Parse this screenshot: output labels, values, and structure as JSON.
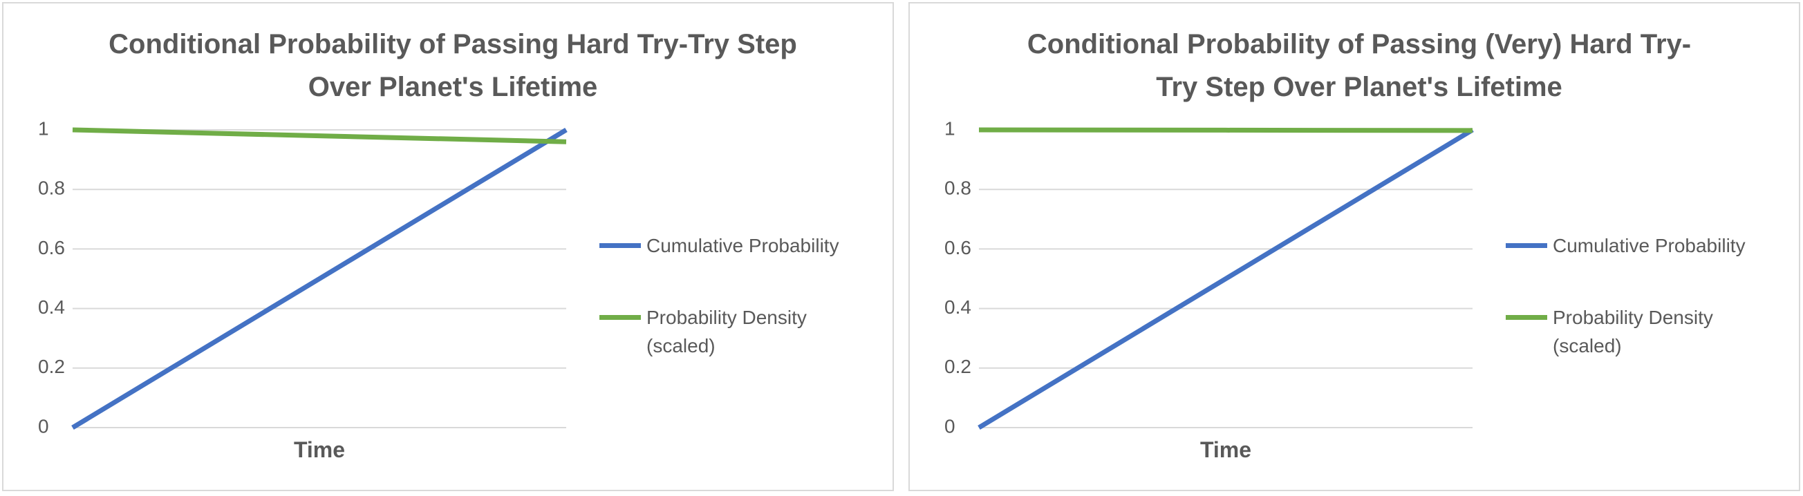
{
  "chart_data": [
    {
      "type": "line",
      "title": "Conditional Probability of Passing Hard Try-Try Step Over Planet's Lifetime",
      "x_label": "Time",
      "x": [
        0,
        0.5,
        1
      ],
      "xlim": [
        0,
        1
      ],
      "ylim": [
        0,
        1
      ],
      "yticks": [
        0,
        0.2,
        0.4,
        0.6,
        0.8,
        1
      ],
      "grid": true,
      "series": [
        {
          "name": "Cumulative Probability",
          "color": "#4472c4",
          "values": [
            0,
            0.5,
            1
          ]
        },
        {
          "name": "Probability Density (scaled)",
          "color": "#70ad47",
          "values": [
            1,
            0.98,
            0.96
          ]
        }
      ]
    },
    {
      "type": "line",
      "title": "Conditional Probability of Passing (Very) Hard Try-Try Step Over Planet's Lifetime",
      "x_label": "Time",
      "x": [
        0,
        0.5,
        1
      ],
      "xlim": [
        0,
        1
      ],
      "ylim": [
        0,
        1
      ],
      "yticks": [
        0,
        0.2,
        0.4,
        0.6,
        0.8,
        1
      ],
      "grid": true,
      "series": [
        {
          "name": "Cumulative Probability",
          "color": "#4472c4",
          "values": [
            0,
            0.5,
            1
          ]
        },
        {
          "name": "Probability Density (scaled)",
          "color": "#70ad47",
          "values": [
            1,
            0.999,
            0.998
          ]
        }
      ]
    }
  ]
}
